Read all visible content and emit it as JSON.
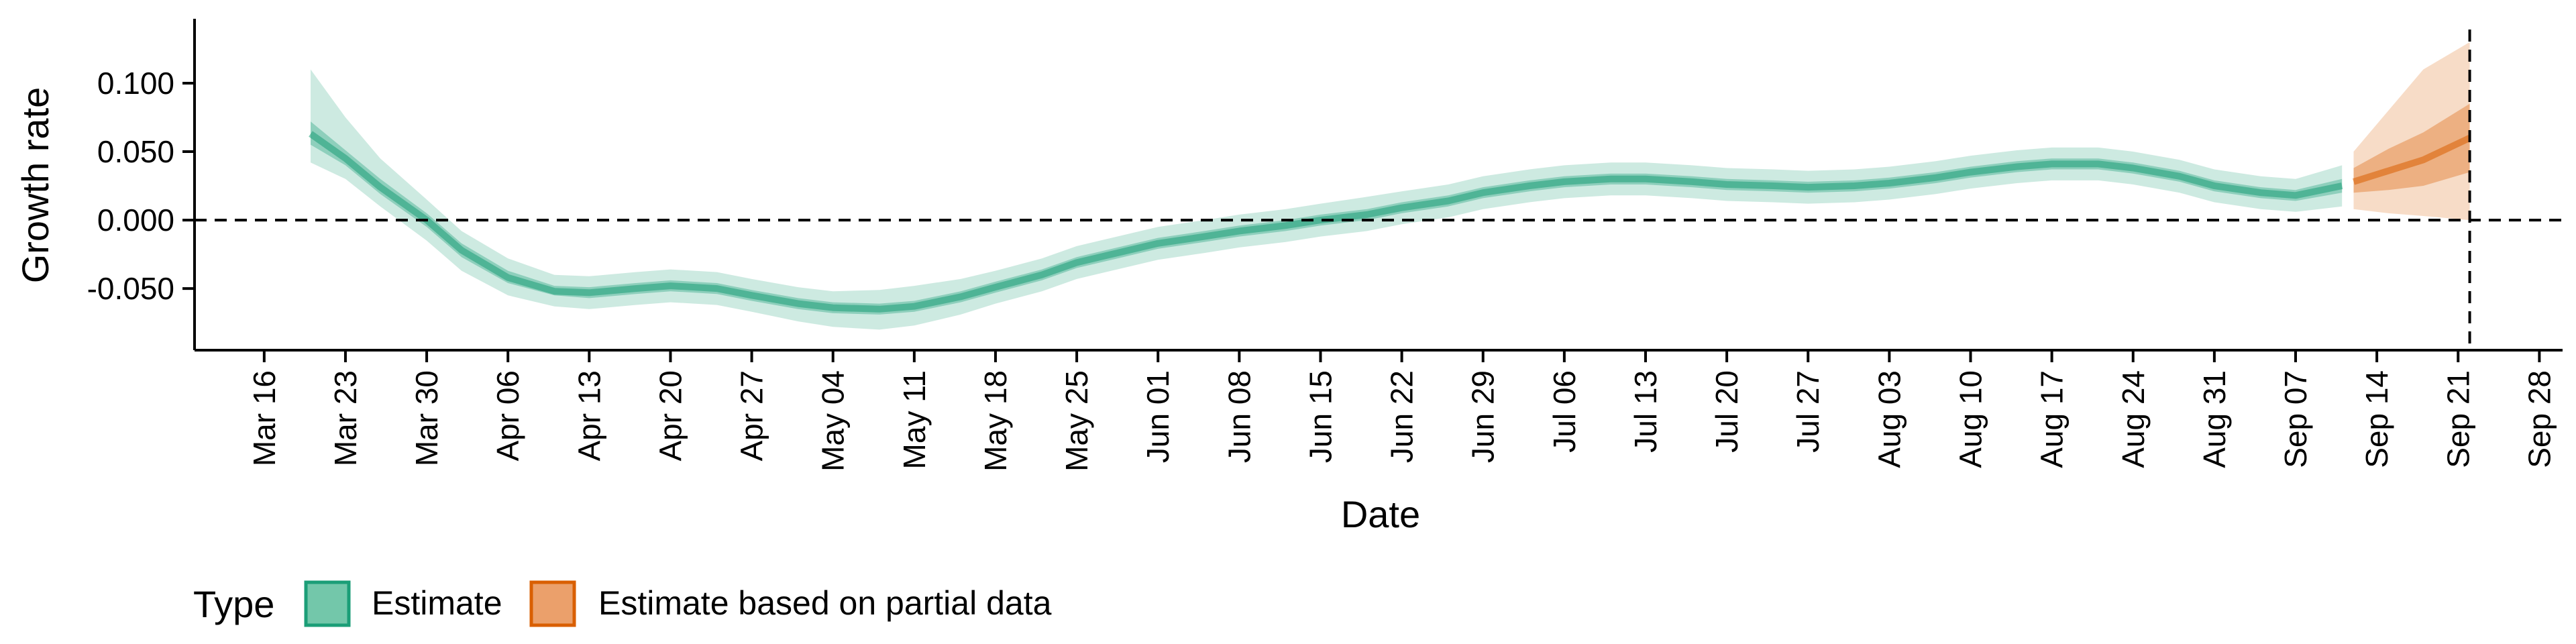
{
  "chart_data": {
    "type": "area",
    "xlabel": "Date",
    "ylabel": "Growth rate",
    "x_ticks": [
      "Mar 16",
      "Mar 23",
      "Mar 30",
      "Apr 06",
      "Apr 13",
      "Apr 20",
      "Apr 27",
      "May 04",
      "May 11",
      "May 18",
      "May 25",
      "Jun 01",
      "Jun 08",
      "Jun 15",
      "Jun 22",
      "Jun 29",
      "Jul 06",
      "Jul 13",
      "Jul 20",
      "Jul 27",
      "Aug 03",
      "Aug 10",
      "Aug 17",
      "Aug 24",
      "Aug 31",
      "Sep 07",
      "Sep 14",
      "Sep 21",
      "Sep 28"
    ],
    "x_ticks_dates": [
      "2020-03-16",
      "2020-03-23",
      "2020-03-30",
      "2020-04-06",
      "2020-04-13",
      "2020-04-20",
      "2020-04-27",
      "2020-05-04",
      "2020-05-11",
      "2020-05-18",
      "2020-05-25",
      "2020-06-01",
      "2020-06-08",
      "2020-06-15",
      "2020-06-22",
      "2020-06-29",
      "2020-07-06",
      "2020-07-13",
      "2020-07-20",
      "2020-07-27",
      "2020-08-03",
      "2020-08-10",
      "2020-08-17",
      "2020-08-24",
      "2020-08-31",
      "2020-09-07",
      "2020-09-14",
      "2020-09-21",
      "2020-09-28"
    ],
    "y_ticks": [
      "-0.050",
      "0.000",
      "0.050",
      "0.100"
    ],
    "y_ticks_values": [
      -0.05,
      0.0,
      0.05,
      0.1
    ],
    "xlim": [
      "2020-03-10",
      "2020-09-30"
    ],
    "ylim": [
      -0.095,
      0.147
    ],
    "reference_lines": [
      {
        "axis": "y",
        "value": 0.0,
        "style": "dashed"
      },
      {
        "axis": "x",
        "value": "2020-09-22",
        "style": "dashed"
      }
    ],
    "legend": {
      "title": "Type",
      "position": "bottom-left",
      "entries": [
        "Estimate",
        "Estimate based on partial data"
      ]
    },
    "series": [
      {
        "name": "Estimate",
        "color": "#1b9e77",
        "x": [
          "2020-03-20",
          "2020-03-23",
          "2020-03-26",
          "2020-03-30",
          "2020-04-02",
          "2020-04-06",
          "2020-04-10",
          "2020-04-13",
          "2020-04-17",
          "2020-04-20",
          "2020-04-24",
          "2020-04-27",
          "2020-05-01",
          "2020-05-04",
          "2020-05-08",
          "2020-05-11",
          "2020-05-15",
          "2020-05-18",
          "2020-05-22",
          "2020-05-25",
          "2020-05-29",
          "2020-06-01",
          "2020-06-05",
          "2020-06-08",
          "2020-06-12",
          "2020-06-15",
          "2020-06-19",
          "2020-06-22",
          "2020-06-26",
          "2020-06-29",
          "2020-07-03",
          "2020-07-06",
          "2020-07-10",
          "2020-07-13",
          "2020-07-17",
          "2020-07-20",
          "2020-07-24",
          "2020-07-27",
          "2020-07-31",
          "2020-08-03",
          "2020-08-07",
          "2020-08-10",
          "2020-08-14",
          "2020-08-17",
          "2020-08-21",
          "2020-08-24",
          "2020-08-28",
          "2020-08-31",
          "2020-09-04",
          "2020-09-07",
          "2020-09-11"
        ],
        "median": [
          0.063,
          0.045,
          0.024,
          0.0,
          -0.022,
          -0.042,
          -0.052,
          -0.053,
          -0.05,
          -0.048,
          -0.05,
          -0.055,
          -0.061,
          -0.064,
          -0.065,
          -0.063,
          -0.056,
          -0.049,
          -0.04,
          -0.031,
          -0.023,
          -0.017,
          -0.012,
          -0.008,
          -0.004,
          0.0,
          0.004,
          0.009,
          0.014,
          0.02,
          0.025,
          0.028,
          0.03,
          0.03,
          0.028,
          0.026,
          0.025,
          0.024,
          0.025,
          0.027,
          0.031,
          0.035,
          0.039,
          0.041,
          0.041,
          0.038,
          0.032,
          0.025,
          0.02,
          0.018,
          0.025
        ],
        "lower_90": [
          0.042,
          0.03,
          0.01,
          -0.015,
          -0.037,
          -0.055,
          -0.063,
          -0.065,
          -0.062,
          -0.06,
          -0.062,
          -0.067,
          -0.074,
          -0.078,
          -0.08,
          -0.077,
          -0.069,
          -0.061,
          -0.052,
          -0.043,
          -0.035,
          -0.029,
          -0.024,
          -0.02,
          -0.016,
          -0.012,
          -0.008,
          -0.003,
          0.002,
          0.008,
          0.013,
          0.016,
          0.018,
          0.018,
          0.016,
          0.014,
          0.013,
          0.012,
          0.013,
          0.015,
          0.019,
          0.023,
          0.027,
          0.029,
          0.029,
          0.026,
          0.02,
          0.013,
          0.008,
          0.006,
          0.01
        ],
        "upper_90": [
          0.11,
          0.075,
          0.045,
          0.015,
          -0.008,
          -0.028,
          -0.04,
          -0.041,
          -0.038,
          -0.036,
          -0.038,
          -0.043,
          -0.049,
          -0.052,
          -0.051,
          -0.048,
          -0.043,
          -0.037,
          -0.028,
          -0.019,
          -0.011,
          -0.005,
          0.0,
          0.004,
          0.008,
          0.012,
          0.017,
          0.021,
          0.026,
          0.032,
          0.037,
          0.04,
          0.042,
          0.042,
          0.04,
          0.038,
          0.037,
          0.036,
          0.037,
          0.039,
          0.043,
          0.047,
          0.051,
          0.053,
          0.053,
          0.05,
          0.044,
          0.037,
          0.032,
          0.03,
          0.04
        ],
        "lower_50": [
          0.055,
          0.04,
          0.019,
          -0.005,
          -0.027,
          -0.046,
          -0.055,
          -0.057,
          -0.054,
          -0.052,
          -0.054,
          -0.059,
          -0.065,
          -0.068,
          -0.069,
          -0.067,
          -0.06,
          -0.053,
          -0.044,
          -0.035,
          -0.027,
          -0.021,
          -0.016,
          -0.012,
          -0.008,
          -0.004,
          0.0,
          0.005,
          0.01,
          0.016,
          0.021,
          0.024,
          0.026,
          0.026,
          0.024,
          0.022,
          0.021,
          0.02,
          0.021,
          0.023,
          0.027,
          0.031,
          0.035,
          0.037,
          0.037,
          0.034,
          0.028,
          0.021,
          0.016,
          0.014,
          0.02
        ],
        "upper_50": [
          0.072,
          0.051,
          0.03,
          0.005,
          -0.017,
          -0.037,
          -0.048,
          -0.049,
          -0.046,
          -0.044,
          -0.046,
          -0.051,
          -0.057,
          -0.06,
          -0.061,
          -0.059,
          -0.052,
          -0.045,
          -0.036,
          -0.027,
          -0.019,
          -0.013,
          -0.008,
          -0.004,
          0.0,
          0.004,
          0.008,
          0.013,
          0.018,
          0.024,
          0.029,
          0.032,
          0.034,
          0.034,
          0.032,
          0.03,
          0.029,
          0.028,
          0.029,
          0.031,
          0.035,
          0.039,
          0.043,
          0.045,
          0.045,
          0.042,
          0.036,
          0.029,
          0.024,
          0.022,
          0.03
        ]
      },
      {
        "name": "Estimate based on partial data",
        "color": "#d95f02",
        "x": [
          "2020-09-12",
          "2020-09-15",
          "2020-09-18",
          "2020-09-22"
        ],
        "median": [
          0.028,
          0.036,
          0.044,
          0.06
        ],
        "lower_90": [
          0.008,
          0.005,
          0.003,
          0.0
        ],
        "upper_90": [
          0.05,
          0.08,
          0.11,
          0.13
        ],
        "lower_50": [
          0.02,
          0.022,
          0.025,
          0.035
        ],
        "upper_50": [
          0.038,
          0.052,
          0.064,
          0.085
        ]
      }
    ]
  }
}
